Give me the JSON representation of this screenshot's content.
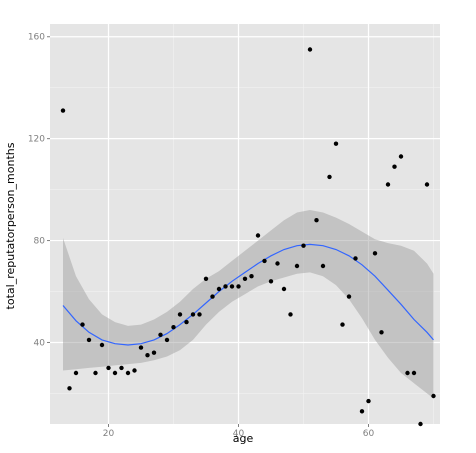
{
  "chart_data": {
    "type": "scatter",
    "title": "",
    "xlabel": "age",
    "ylabel": "total_reputatorperson_months",
    "xlim": [
      11,
      71
    ],
    "ylim": [
      8,
      165
    ],
    "x_ticks": [
      20,
      40,
      60
    ],
    "y_ticks": [
      40,
      80,
      120,
      160
    ],
    "x_tick_labels": [
      "20",
      "40",
      "60"
    ],
    "y_tick_labels": [
      "40",
      "80",
      "120",
      "160"
    ],
    "grid": true,
    "legend": "none",
    "colors": {
      "panel_background": "#e5e5e5",
      "grid_major": "#ffffff",
      "grid_minor": "#f2f2f2",
      "points": "#000000",
      "smooth_line": "#3366ff",
      "confidence_band": "#999999"
    },
    "series": [
      {
        "kind": "points",
        "x": [
          13,
          14,
          15,
          16,
          17,
          18,
          19,
          20,
          21,
          22,
          23,
          24,
          25,
          26,
          27,
          28,
          29,
          30,
          31,
          32,
          33,
          34,
          35,
          36,
          37,
          38,
          39,
          40,
          41,
          42,
          43,
          44,
          45,
          46,
          47,
          48,
          49,
          50,
          51,
          52,
          53,
          54,
          55,
          56,
          57,
          58,
          59,
          60,
          61,
          62,
          63,
          64,
          65,
          66,
          67,
          68,
          69,
          70
        ],
        "y": [
          131,
          22,
          28,
          47,
          41,
          28,
          39,
          30,
          28,
          30,
          28,
          29,
          38,
          35,
          36,
          43,
          41,
          46,
          51,
          48,
          51,
          51,
          65,
          58,
          61,
          62,
          62,
          62,
          65,
          66,
          82,
          72,
          64,
          71,
          61,
          51,
          70,
          78,
          155,
          88,
          70,
          105,
          118,
          47,
          58,
          73,
          13,
          17,
          75,
          44,
          102,
          109,
          113,
          28,
          28,
          8,
          102,
          19
        ]
      },
      {
        "kind": "smooth",
        "x": [
          13,
          15,
          17,
          19,
          21,
          23,
          25,
          27,
          29,
          31,
          33,
          35,
          37,
          39,
          41,
          43,
          45,
          47,
          49,
          51,
          53,
          55,
          57,
          59,
          61,
          63,
          65,
          67,
          69,
          70
        ],
        "y": [
          54.5,
          48.5,
          44,
          41,
          39.5,
          39,
          39.5,
          41,
          43.5,
          47,
          51,
          55.5,
          60,
          64,
          67.5,
          71,
          74,
          76.5,
          78,
          78.5,
          78,
          76.5,
          74,
          70.5,
          66,
          60.5,
          55,
          49,
          44,
          41
        ],
        "lower": [
          29,
          29.5,
          30,
          30.5,
          31,
          31.5,
          32,
          33,
          34.5,
          37,
          41,
          47,
          52,
          56,
          59,
          62,
          64,
          65.5,
          67,
          67.5,
          66,
          62.5,
          57,
          49.5,
          41,
          34,
          28,
          24,
          20,
          18
        ],
        "upper": [
          81,
          66,
          57,
          51,
          48,
          46.5,
          47,
          49,
          52,
          56,
          61,
          65,
          68,
          72,
          76,
          80,
          84,
          88,
          91,
          92,
          91,
          89,
          86.5,
          83.5,
          80.5,
          79,
          78,
          76,
          71,
          67
        ]
      }
    ]
  }
}
